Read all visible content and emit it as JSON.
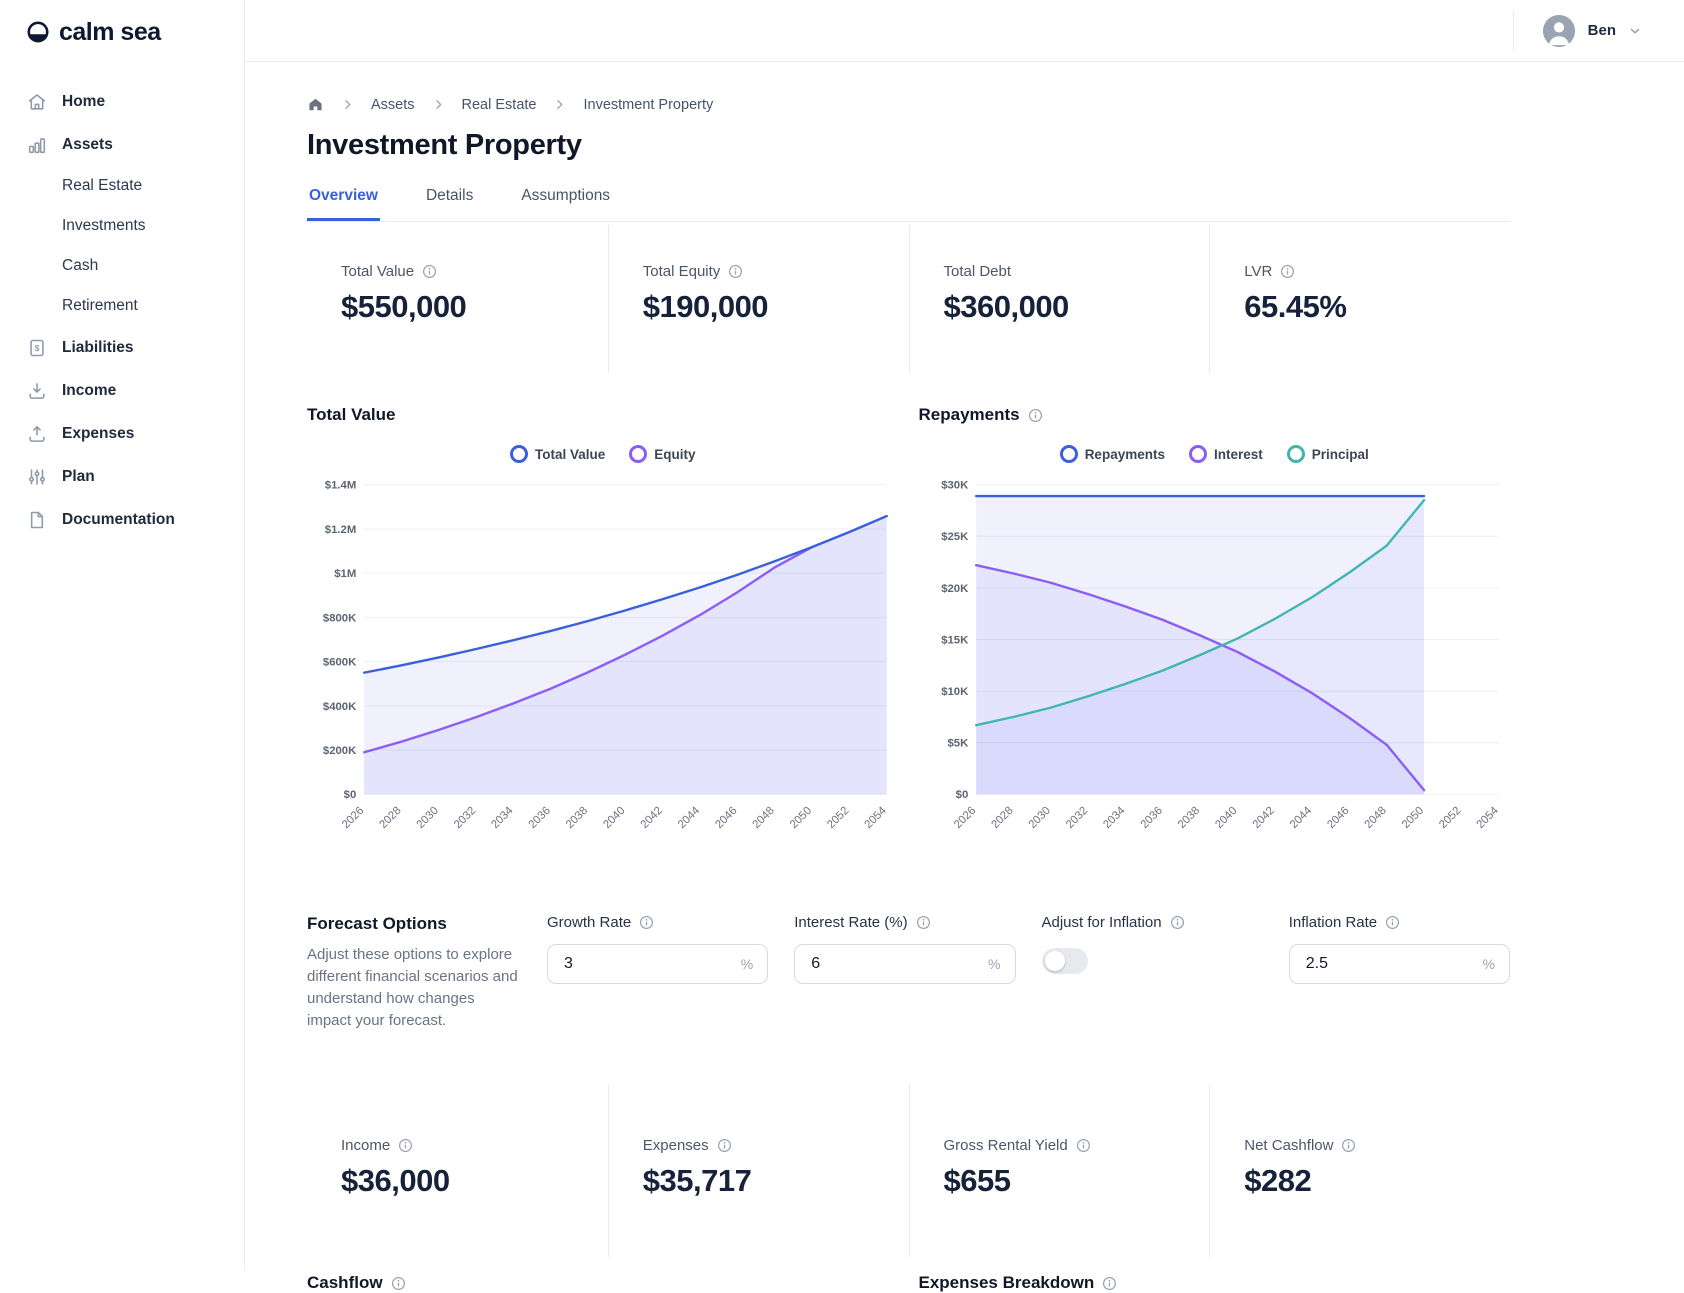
{
  "brand": {
    "name": "calm sea"
  },
  "user": {
    "name": "Ben"
  },
  "sidebar": {
    "items": [
      {
        "label": "Home",
        "icon": "home"
      },
      {
        "label": "Assets",
        "icon": "bar-chart"
      },
      {
        "label": "Real Estate",
        "child": true
      },
      {
        "label": "Investments",
        "child": true
      },
      {
        "label": "Cash",
        "child": true
      },
      {
        "label": "Retirement",
        "child": true
      },
      {
        "label": "Liabilities",
        "icon": "invoice-dollar"
      },
      {
        "label": "Income",
        "icon": "arrow-down-tray"
      },
      {
        "label": "Expenses",
        "icon": "arrow-up-tray"
      },
      {
        "label": "Plan",
        "icon": "sliders"
      },
      {
        "label": "Documentation",
        "icon": "document"
      }
    ]
  },
  "breadcrumb": {
    "items": [
      "Assets",
      "Real Estate",
      "Investment Property"
    ]
  },
  "page": {
    "title": "Investment Property",
    "tabs": [
      {
        "label": "Overview",
        "active": true
      },
      {
        "label": "Details",
        "active": false
      },
      {
        "label": "Assumptions",
        "active": false
      }
    ]
  },
  "stats_top": [
    {
      "label": "Total Value",
      "value": "$550,000",
      "info": true
    },
    {
      "label": "Total Equity",
      "value": "$190,000",
      "info": true
    },
    {
      "label": "Total Debt",
      "value": "$360,000",
      "info": false
    },
    {
      "label": "LVR",
      "value": "65.45%",
      "info": true
    }
  ],
  "forecast": {
    "heading": "Forecast Options",
    "description": "Adjust these options to explore different financial scenarios and understand how changes impact your forecast.",
    "growth_rate": {
      "label": "Growth Rate",
      "value": "3",
      "suffix": "%"
    },
    "interest_rate": {
      "label": "Interest Rate (%)",
      "value": "6",
      "suffix": "%"
    },
    "adjust_for_inflation": {
      "label": "Adjust for Inflation",
      "state": "off"
    },
    "inflation_rate": {
      "label": "Inflation Rate",
      "value": "2.5",
      "suffix": "%"
    }
  },
  "stats_bottom": [
    {
      "label": "Income",
      "value": "$36,000",
      "info": true
    },
    {
      "label": "Expenses",
      "value": "$35,717",
      "info": true
    },
    {
      "label": "Gross Rental Yield",
      "value": "$655",
      "info": true
    },
    {
      "label": "Net Cashflow",
      "value": "$282",
      "info": true
    }
  ],
  "bottom_sections": {
    "left": {
      "title": "Cashflow"
    },
    "right": {
      "title": "Expenses Breakdown"
    }
  },
  "colors": {
    "accent_blue": "#3a5fdd",
    "purple": "#8b5cf6",
    "teal": "#3fb6ae",
    "area_fill": "rgba(99,102,241,0.09)"
  },
  "chart_data": [
    {
      "type": "area",
      "title": "Total Value",
      "title_info": false,
      "legend_position": "top",
      "grid": "horizontal",
      "x": [
        2026,
        2028,
        2030,
        2032,
        2034,
        2036,
        2038,
        2040,
        2042,
        2044,
        2046,
        2048,
        2050,
        2052,
        2054
      ],
      "ylim": [
        0,
        1400000
      ],
      "yticks": [
        {
          "v": 0,
          "label": "$0"
        },
        {
          "v": 200000,
          "label": "$200K"
        },
        {
          "v": 400000,
          "label": "$400K"
        },
        {
          "v": 600000,
          "label": "$600K"
        },
        {
          "v": 800000,
          "label": "$800K"
        },
        {
          "v": 1000000,
          "label": "$1M"
        },
        {
          "v": 1200000,
          "label": "$1.2M"
        },
        {
          "v": 1400000,
          "label": "$1.4M"
        }
      ],
      "stroke_order": [
        1,
        0
      ],
      "series": [
        {
          "name": "Total Value",
          "color": "#3a5fdd",
          "fill": "rgba(99,102,241,0.09)",
          "values": [
            550000,
            583000,
            619000,
            657000,
            697000,
            739000,
            784000,
            832000,
            883000,
            936000,
            993000,
            1054000,
            1118000,
            1186000,
            1258000
          ]
        },
        {
          "name": "Equity",
          "color": "#8b5cf6",
          "fill": "rgba(99,102,241,0.09)",
          "values": [
            190000,
            238000,
            291000,
            349000,
            411000,
            478000,
            552000,
            632000,
            718000,
            811000,
            914000,
            1026000,
            1118000,
            1186000,
            1258000
          ]
        }
      ]
    },
    {
      "type": "area",
      "title": "Repayments",
      "title_info": true,
      "legend_position": "top",
      "grid": "horizontal",
      "x": [
        2026,
        2028,
        2030,
        2032,
        2034,
        2036,
        2038,
        2040,
        2042,
        2044,
        2046,
        2048,
        2050,
        2052,
        2054
      ],
      "ylim": [
        0,
        30000
      ],
      "yticks": [
        {
          "v": 0,
          "label": "$0"
        },
        {
          "v": 5000,
          "label": "$5K"
        },
        {
          "v": 10000,
          "label": "$10K"
        },
        {
          "v": 15000,
          "label": "$15K"
        },
        {
          "v": 20000,
          "label": "$20K"
        },
        {
          "v": 25000,
          "label": "$25K"
        },
        {
          "v": 30000,
          "label": "$30K"
        }
      ],
      "stroke_order": [
        0,
        1,
        2
      ],
      "series": [
        {
          "name": "Repayments",
          "color": "#3a5fdd",
          "fill": "rgba(99,102,241,0.09)",
          "values": [
            28900,
            28900,
            28900,
            28900,
            28900,
            28900,
            28900,
            28900,
            28900,
            28900,
            28900,
            28900,
            28900,
            null,
            null
          ]
        },
        {
          "name": "Interest",
          "color": "#8b5cf6",
          "fill": "rgba(99,102,241,0.09)",
          "values": [
            22200,
            21400,
            20500,
            19400,
            18200,
            16900,
            15400,
            13800,
            11900,
            9800,
            7400,
            4800,
            400,
            null,
            null
          ]
        },
        {
          "name": "Principal",
          "color": "#3fb6ae",
          "fill": "rgba(99,102,241,0.07)",
          "values": [
            6700,
            7500,
            8400,
            9500,
            10700,
            12000,
            13500,
            15100,
            17000,
            19100,
            21500,
            24100,
            28500,
            null,
            null
          ]
        }
      ]
    }
  ]
}
